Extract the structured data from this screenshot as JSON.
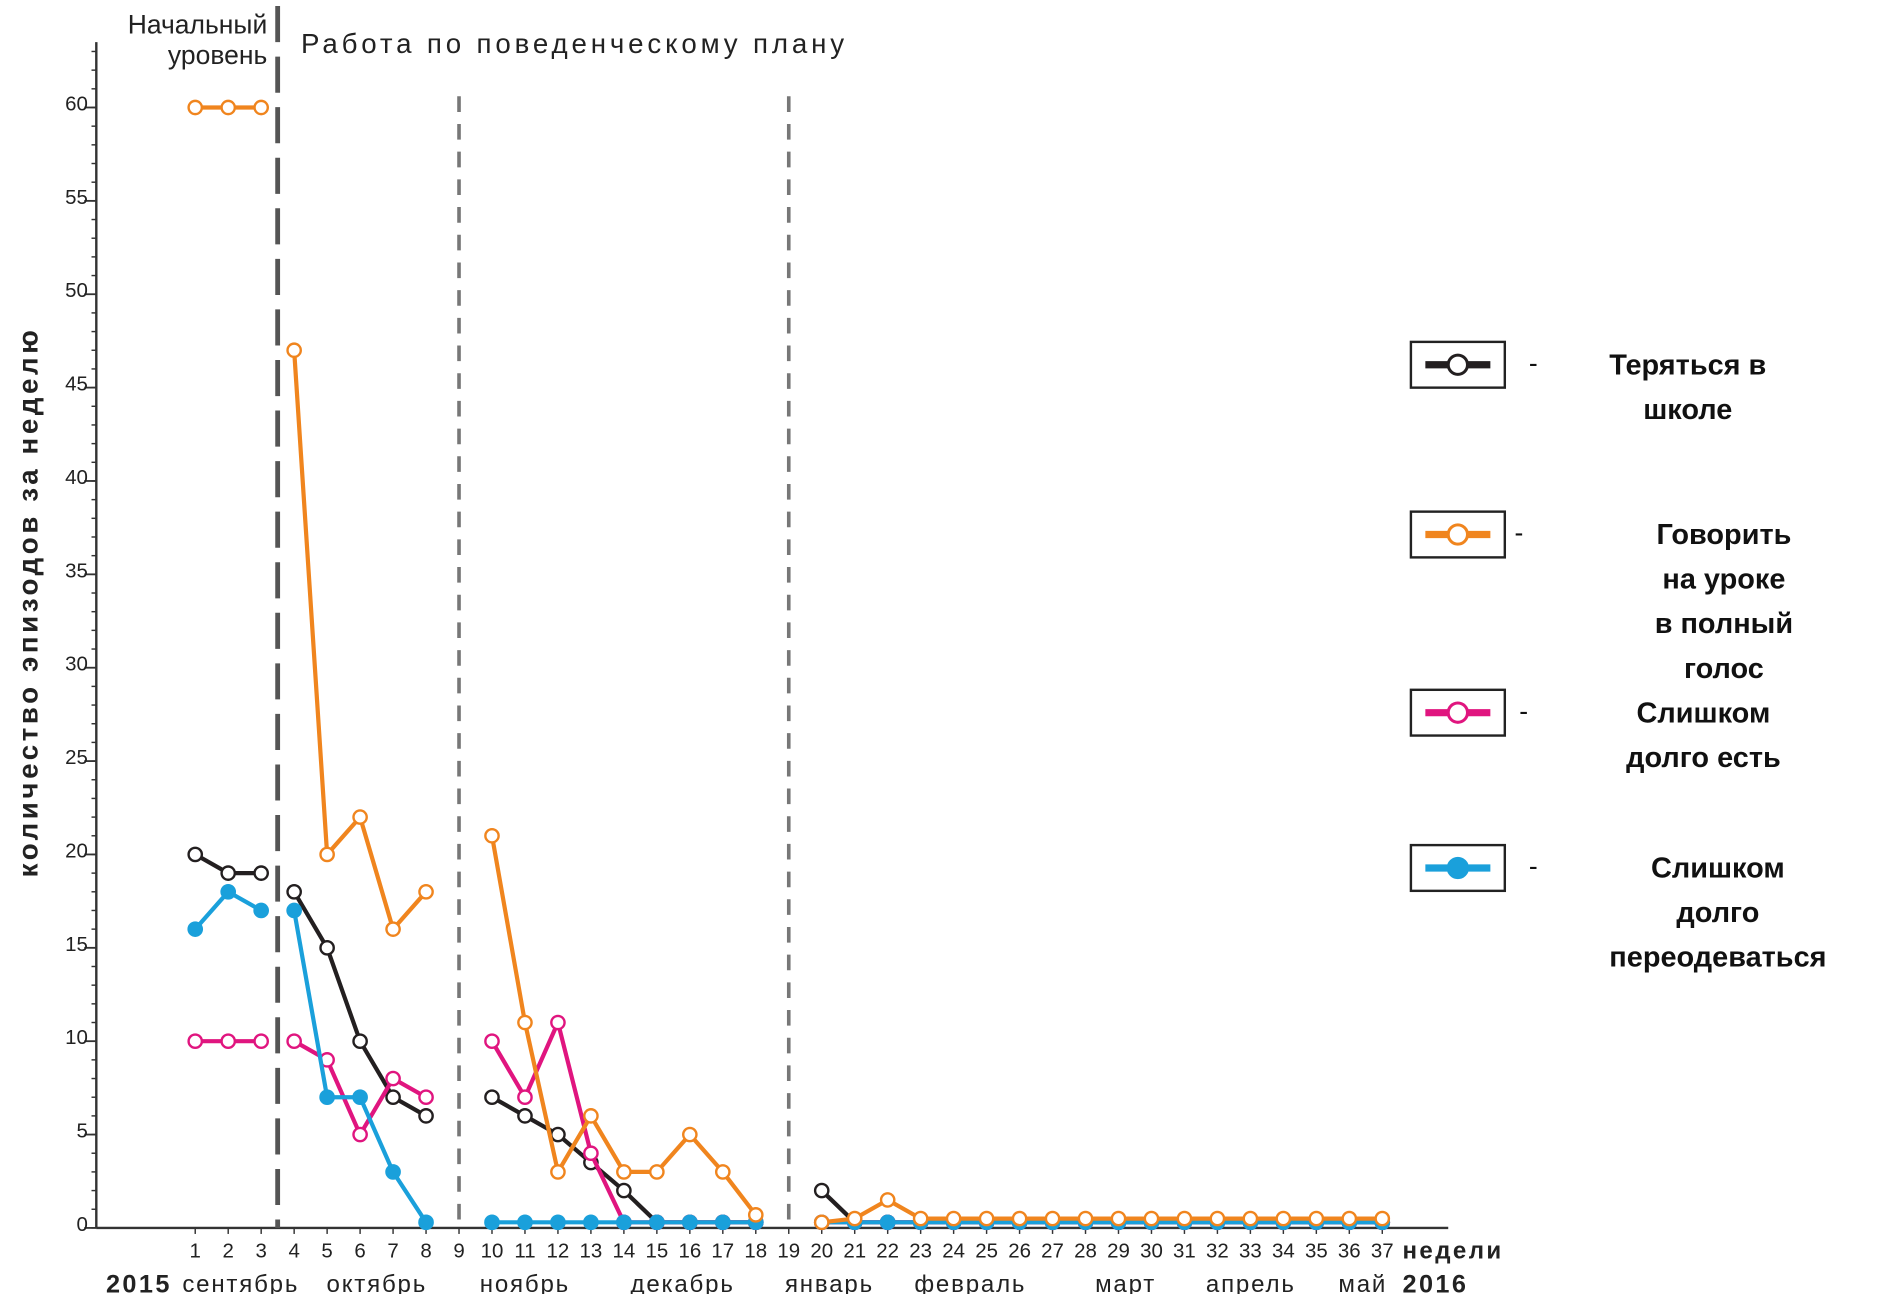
{
  "chart_data": {
    "type": "line",
    "ylabel": "количество эпизодов за неделю",
    "annotations": [
      "Начальный\nуровень",
      "Работа по поведенческому плану"
    ],
    "x": [
      1,
      2,
      3,
      4,
      5,
      6,
      7,
      8,
      9,
      10,
      11,
      12,
      13,
      14,
      15,
      16,
      17,
      18,
      19,
      20,
      21,
      22,
      23,
      24,
      25,
      26,
      27,
      28,
      29,
      30,
      31,
      32,
      33,
      34,
      35,
      36,
      37
    ],
    "xlim": [
      -2,
      39
    ],
    "xticks": [
      1,
      2,
      3,
      4,
      5,
      6,
      7,
      8,
      9,
      10,
      11,
      12,
      13,
      14,
      15,
      16,
      17,
      18,
      19,
      20,
      21,
      22,
      23,
      24,
      25,
      26,
      27,
      28,
      29,
      30,
      31,
      32,
      33,
      34,
      35,
      36,
      37
    ],
    "xunit": "недели",
    "years": [
      "2015",
      "2016"
    ],
    "months": [
      "сентябрь",
      "октябрь",
      "ноябрь",
      "декабрь",
      "январь",
      "февраль",
      "март",
      "апрель",
      "май"
    ],
    "ylim": [
      0,
      63.5
    ],
    "yticks": [
      0,
      5,
      10,
      15,
      20,
      25,
      30,
      35,
      40,
      45,
      50,
      55,
      60
    ],
    "phase_lines": [
      3.5,
      9,
      19
    ],
    "legend_dash": "-",
    "legend": "right",
    "series": [
      {
        "name": "Теряться в школе",
        "color": "#231f20",
        "marker": "open",
        "values": [
          20,
          19,
          19,
          18,
          15,
          10,
          7,
          6,
          null,
          7,
          6,
          5,
          3.5,
          2,
          0.3,
          0.3,
          0.3,
          0.3,
          null,
          2,
          0.3,
          0.3,
          0.3,
          0.3,
          0.3,
          0.3,
          0.3,
          0.3,
          0.3,
          0.3,
          0.3,
          0.3,
          0.3,
          0.3,
          0.3,
          0.3,
          0.3
        ]
      },
      {
        "name": "Говорить на уроке\nв полный голос",
        "color": "#f0851e",
        "marker": "open",
        "values": [
          60,
          60,
          60,
          47,
          20,
          22,
          16,
          18,
          null,
          21,
          11,
          3,
          6,
          3,
          3,
          5,
          3,
          0.7,
          null,
          0.3,
          0.5,
          1.5,
          0.5,
          0.5,
          0.5,
          0.5,
          0.5,
          0.5,
          0.5,
          0.5,
          0.5,
          0.5,
          0.5,
          0.5,
          0.5,
          0.5,
          0.5
        ]
      },
      {
        "name": "Слишком долго есть",
        "color": "#e0157f",
        "marker": "open",
        "values": [
          10,
          10,
          10,
          10,
          9,
          5,
          8,
          7,
          null,
          10,
          7,
          11,
          4,
          0.3,
          0.3,
          0.3,
          0.3,
          0.3,
          null,
          0.3,
          0.3,
          0.3,
          0.3,
          0.3,
          0.3,
          0.3,
          0.3,
          0.3,
          0.3,
          0.3,
          0.3,
          0.3,
          0.3,
          0.3,
          0.3,
          0.3,
          0.3
        ]
      },
      {
        "name": "Слишком долго\nпереодеваться",
        "color": "#1aa0db",
        "marker": "filled",
        "values": [
          16,
          18,
          17,
          17,
          7,
          7,
          3,
          0.3,
          null,
          0.3,
          0.3,
          0.3,
          0.3,
          0.3,
          0.3,
          0.3,
          0.3,
          0.3,
          null,
          0.3,
          0.3,
          0.3,
          0.3,
          0.3,
          0.3,
          0.3,
          0.3,
          0.3,
          0.3,
          0.3,
          0.3,
          0.3,
          0.3,
          0.3,
          0.3,
          0.3,
          0.3
        ]
      }
    ]
  }
}
